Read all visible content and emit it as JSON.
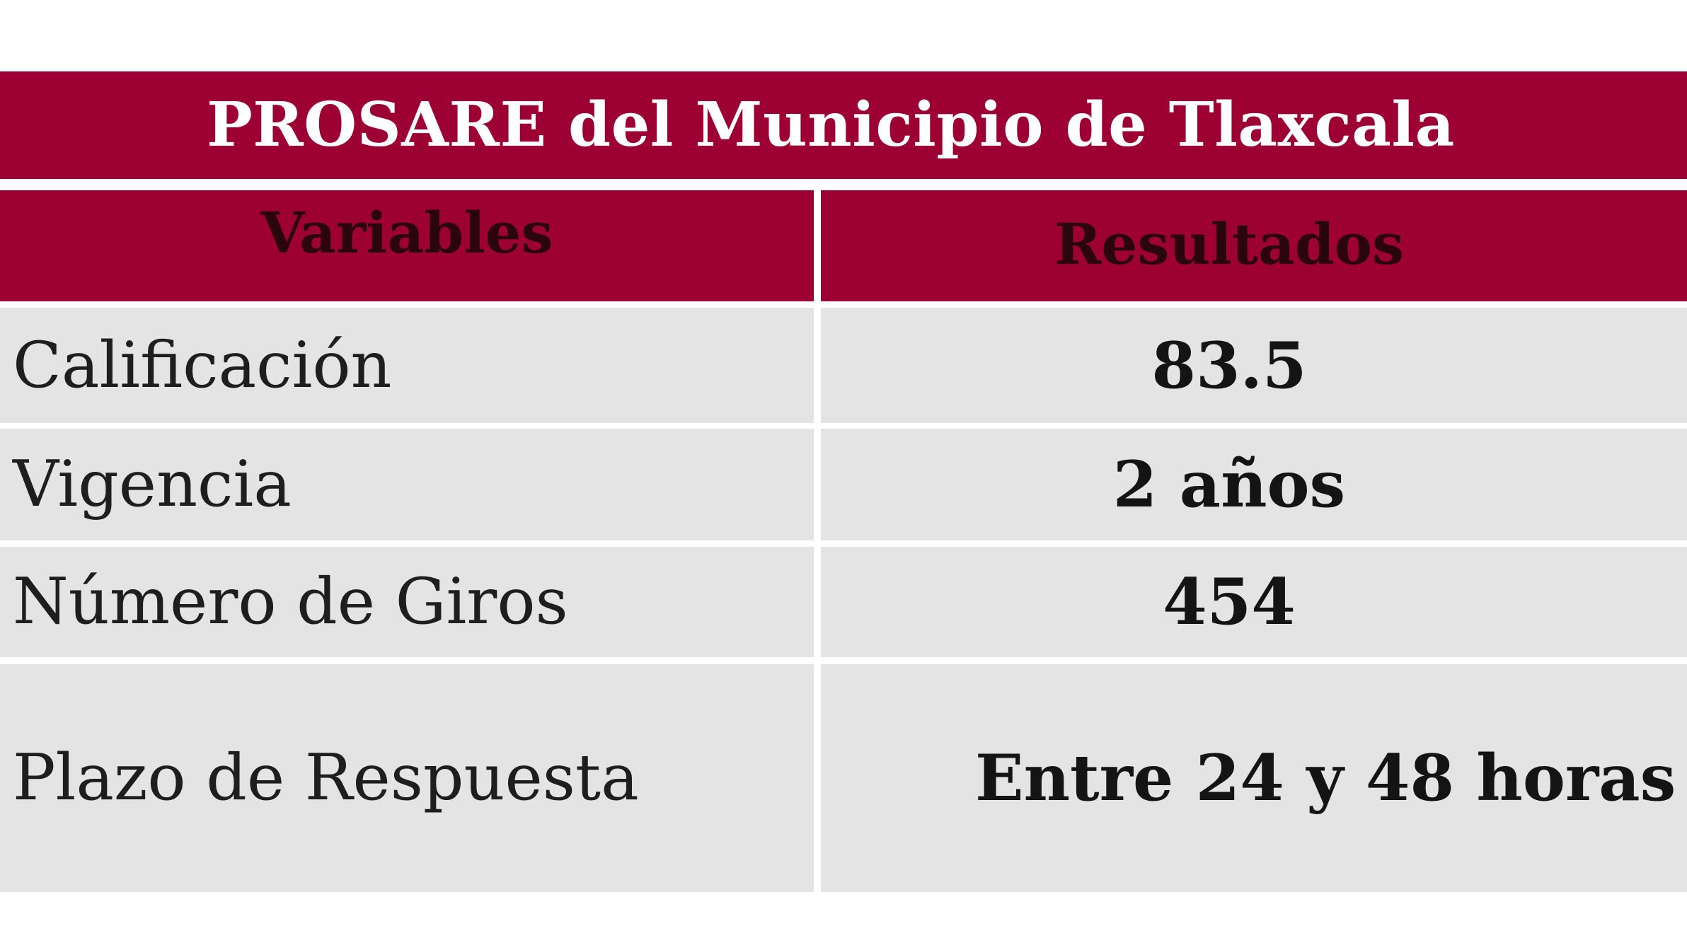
{
  "title": "PROSARE del Municipio de Tlaxcala",
  "headers": {
    "variables": "Variables",
    "results": "Resultados"
  },
  "rows": [
    {
      "variable": "Calificación",
      "result": "83.5"
    },
    {
      "variable": "Vigencia",
      "result": "2 años"
    },
    {
      "variable": "Número de Giros",
      "result": "454"
    },
    {
      "variable": "Plazo de Respuesta",
      "result": "Entre 24 y 48 horas"
    }
  ],
  "colors": {
    "header_bg": "#9d0032",
    "row_bg": "#e4e4e4",
    "title_text": "#ffffff",
    "header_text": "#2a0510"
  }
}
